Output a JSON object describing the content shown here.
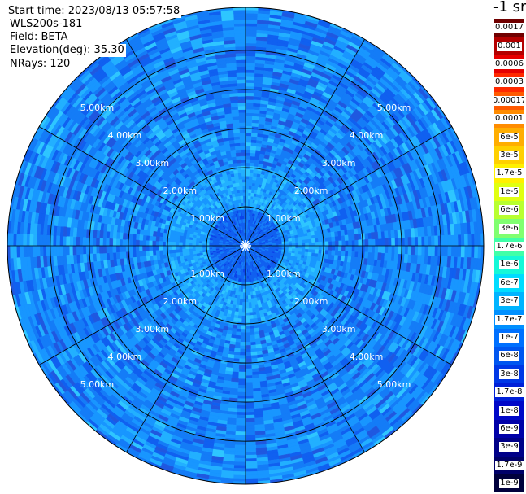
{
  "info": {
    "start_time": "Start time: 2023/08/13 05:57:58",
    "instrument": "WLS200s-181",
    "field": "Field: BETA",
    "elevation": "Elevation(deg): 35.30",
    "nrays": "NRays: 120"
  },
  "colorbar": {
    "title": "-1 sr",
    "labels": [
      "0.0017",
      "0.001",
      "0.0006",
      "0.0003",
      "0.00017",
      "0.0001",
      "6e-5",
      "3e-5",
      "1.7e-5",
      "1e-5",
      "6e-6",
      "3e-6",
      "1.7e-6",
      "1e-6",
      "6e-7",
      "3e-7",
      "1.7e-7",
      "1e-7",
      "6e-8",
      "3e-8",
      "1.7e-8",
      "1e-8",
      "6e-9",
      "3e-9",
      "1.7e-9",
      "1e-9"
    ],
    "colors": [
      "#700000",
      "#b40000",
      "#e60000",
      "#ff2a00",
      "#ff5a00",
      "#ff8c00",
      "#ffae00",
      "#ffd000",
      "#fff000",
      "#e0ff10",
      "#b8ff30",
      "#80ff70",
      "#40ffa8",
      "#14f8d8",
      "#00dcff",
      "#00b4ff",
      "#0090ff",
      "#0070ff",
      "#0056f0",
      "#0038e6",
      "#0020d8",
      "#0008c8",
      "#0000a8",
      "#000088",
      "#000068",
      "#00003c"
    ]
  },
  "chart_data": {
    "type": "heatmap",
    "projection": "polar PPI",
    "field": "BETA",
    "units": "sr-1",
    "n_rays": 120,
    "elevation_deg": 35.3,
    "range_rings_km": [
      1,
      2,
      3,
      4,
      5
    ],
    "range_ring_labels": [
      "1.00km",
      "2.00km",
      "3.00km",
      "4.00km",
      "5.00km"
    ],
    "spokes_deg": [
      0,
      30,
      60,
      90,
      120,
      150,
      180,
      210,
      240,
      270,
      300,
      330
    ],
    "max_range_km": 6.1,
    "dominant_value_band": [
      "3e-8",
      "1.7e-7"
    ],
    "near_range_band_0_to_2km": [
      "1e-7",
      "1.7e-7"
    ],
    "far_range_band_2_to_6km": [
      "3e-8",
      "1e-7"
    ]
  }
}
